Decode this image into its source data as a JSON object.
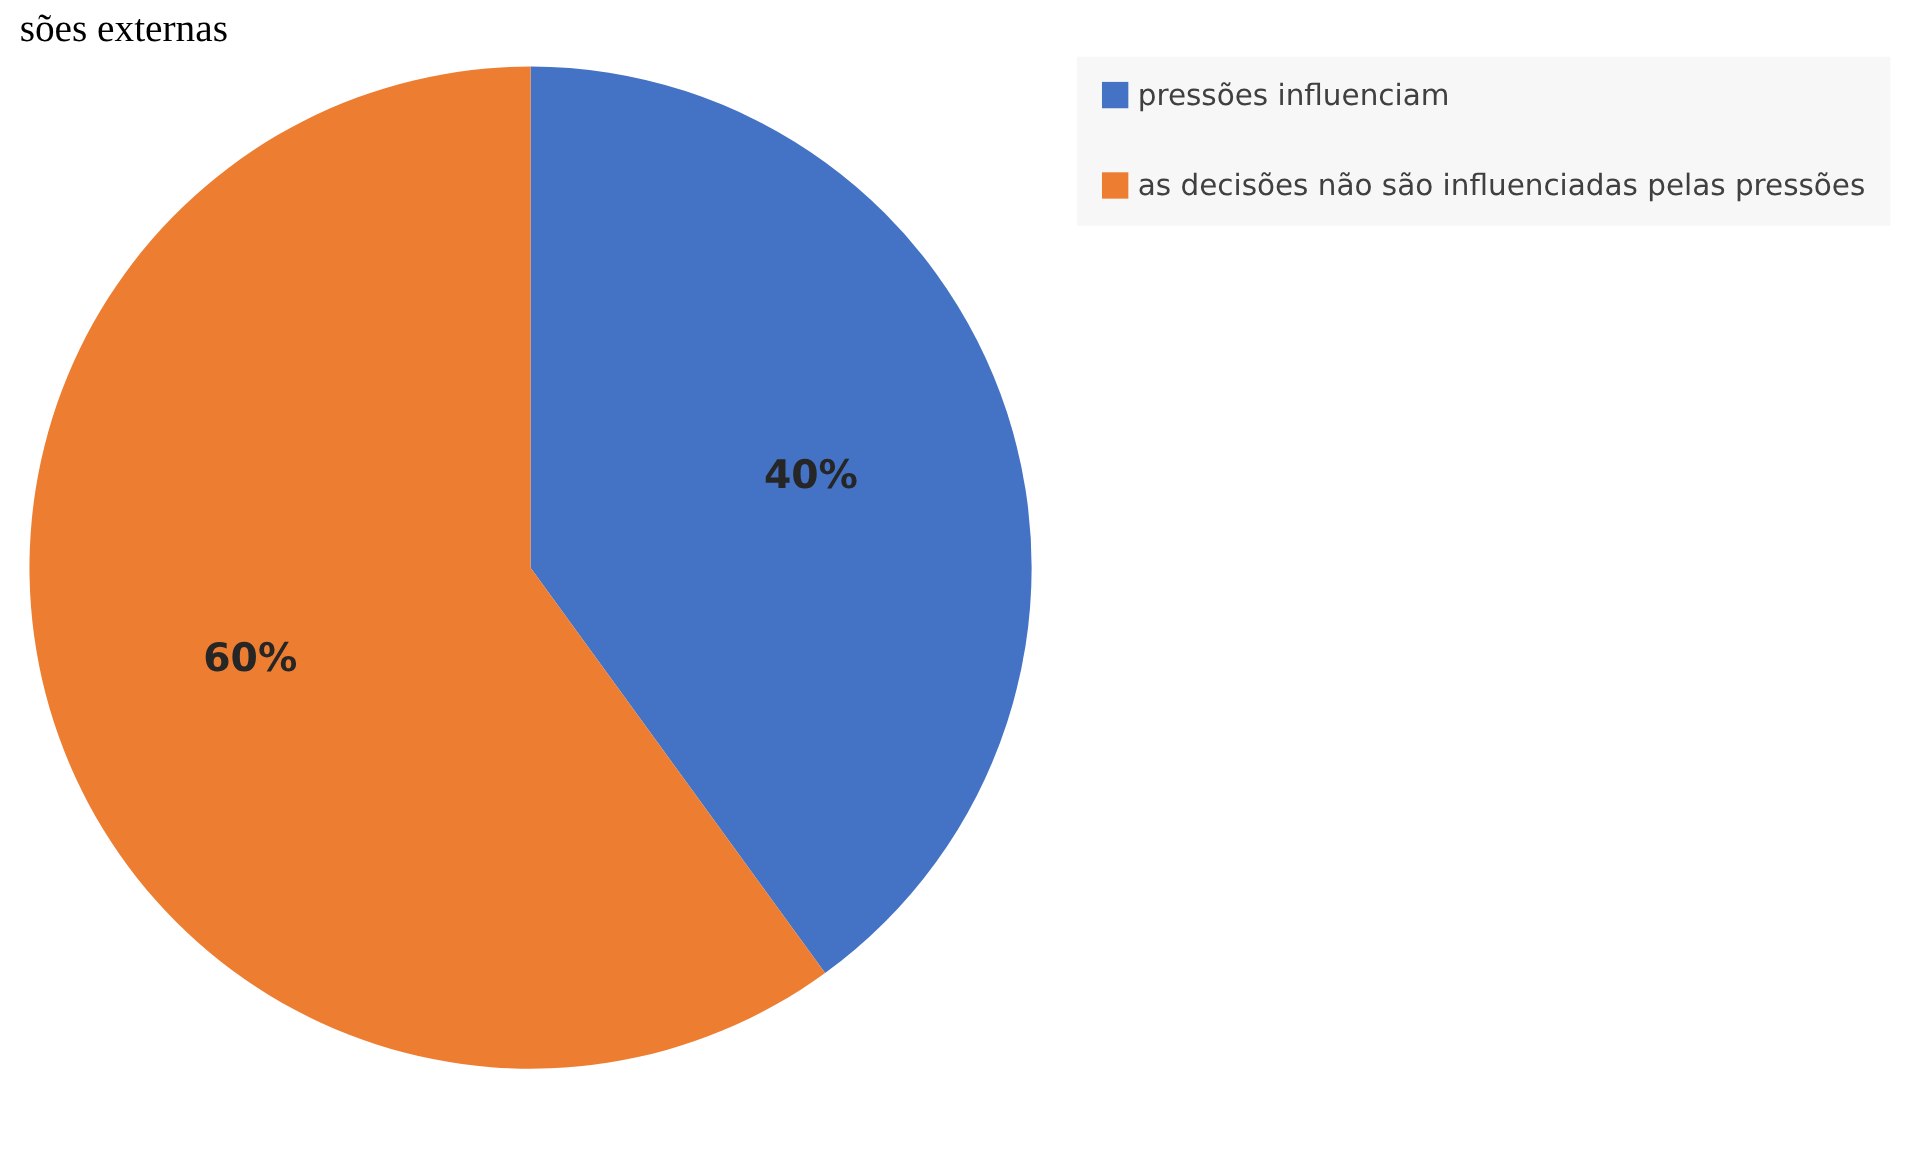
{
  "chart_data": {
    "type": "pie",
    "title": "sões externas",
    "categories": [
      "pressões influenciam",
      "as decisões não são influenciadas pelas pressões"
    ],
    "values": [
      40,
      60
    ],
    "colors": [
      "#4472c4",
      "#ed7d31"
    ],
    "value_labels": [
      "40%",
      "60%"
    ],
    "legend": "right"
  }
}
